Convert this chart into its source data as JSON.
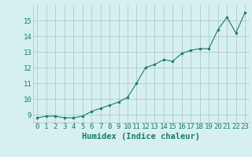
{
  "x": [
    0,
    1,
    2,
    3,
    4,
    5,
    6,
    7,
    8,
    9,
    10,
    11,
    12,
    13,
    14,
    15,
    16,
    17,
    18,
    19,
    20,
    21,
    22,
    23
  ],
  "y": [
    8.8,
    8.9,
    8.9,
    8.8,
    8.8,
    8.9,
    9.2,
    9.4,
    9.6,
    9.8,
    10.1,
    11.0,
    12.0,
    12.2,
    12.5,
    12.4,
    12.9,
    13.1,
    13.2,
    13.2,
    14.4,
    15.2,
    14.2,
    15.5
  ],
  "line_color": "#1a7a6e",
  "marker_color": "#1a7a6e",
  "bg_color": "#d6f0f0",
  "grid_color": "#b0c8c8",
  "text_color": "#1a7a6e",
  "xlabel": "Humidex (Indice chaleur)",
  "ylim": [
    8.5,
    16.0
  ],
  "xlim": [
    -0.5,
    23.5
  ],
  "yticks": [
    9,
    10,
    11,
    12,
    13,
    14,
    15
  ],
  "xticks": [
    0,
    1,
    2,
    3,
    4,
    5,
    6,
    7,
    8,
    9,
    10,
    11,
    12,
    13,
    14,
    15,
    16,
    17,
    18,
    19,
    20,
    21,
    22,
    23
  ],
  "tick_fontsize": 6.5,
  "xlabel_fontsize": 7.5
}
